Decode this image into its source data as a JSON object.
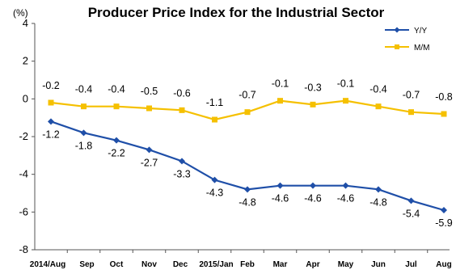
{
  "chart_data": {
    "type": "line",
    "title": "Producer Price Index for the Industrial Sector",
    "unit_label": "(%)",
    "categories": [
      "2014/Aug",
      "Sep",
      "Oct",
      "Nov",
      "Dec",
      "2015/Jan",
      "Feb",
      "Mar",
      "Apr",
      "May",
      "Jun",
      "Jul",
      "Aug"
    ],
    "series": [
      {
        "name": "Y/Y",
        "color": "#1f4fa8",
        "marker": "diamond",
        "values": [
          -1.2,
          -1.8,
          -2.2,
          -2.7,
          -3.3,
          -4.3,
          -4.8,
          -4.6,
          -4.6,
          -4.6,
          -4.8,
          -5.4,
          -5.9
        ]
      },
      {
        "name": "M/M",
        "color": "#f5c000",
        "marker": "square",
        "values": [
          -0.2,
          -0.4,
          -0.4,
          -0.5,
          -0.6,
          -1.1,
          -0.7,
          -0.1,
          -0.3,
          -0.1,
          -0.4,
          -0.7,
          -0.8
        ]
      }
    ],
    "yticks": [
      4,
      2,
      0,
      -2,
      -4,
      -6,
      -8
    ],
    "ylim": [
      -8,
      4
    ],
    "grid": false,
    "legend_position": "top-right"
  }
}
